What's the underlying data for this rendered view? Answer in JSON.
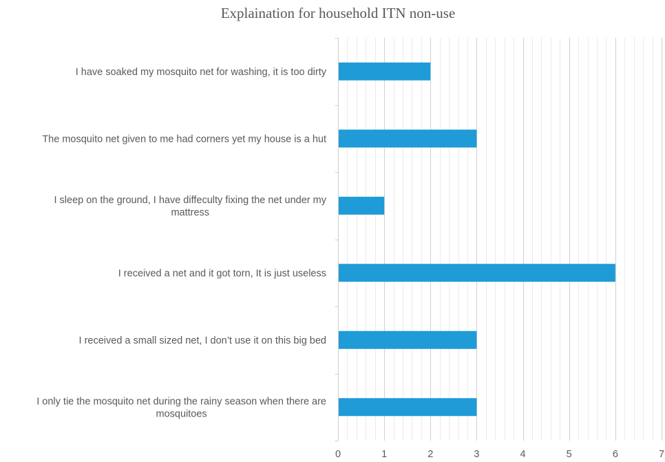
{
  "chart_data": {
    "type": "bar",
    "orientation": "horizontal",
    "title": "Explaination for household ITN non-use",
    "xlabel": "",
    "ylabel": "",
    "categories": [
      [
        "I have soaked my mosquito net for washing, it is too dirty"
      ],
      [
        "The mosquito net given to me had corners yet my house is a hut"
      ],
      [
        "I sleep on the ground, I have diffeculty fixing the net under my",
        "mattress"
      ],
      [
        "I received a net and it got torn, It is just useless"
      ],
      [
        "I received a small sized net, I don’t use it on this big bed"
      ],
      [
        "I only tie the mosquito net during the rainy season when there are",
        "mosquitoes"
      ]
    ],
    "values": [
      2,
      3,
      1,
      6,
      3,
      3
    ],
    "xlim": [
      0,
      7
    ],
    "xticks": [
      "0",
      "1",
      "2",
      "3",
      "4",
      "5",
      "6",
      "7"
    ],
    "grid": true,
    "legend": "none",
    "bar_color": "#1f9bd7"
  }
}
